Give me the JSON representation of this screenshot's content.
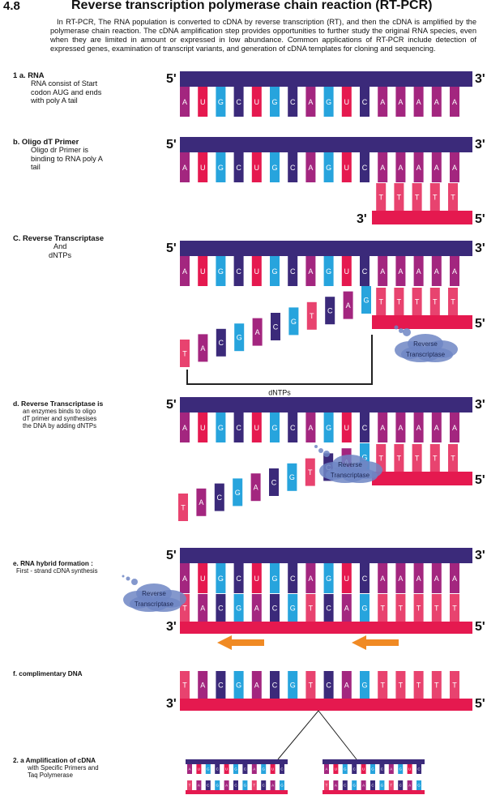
{
  "header": {
    "section_number": "4.8",
    "title": "Reverse transcription polymerase chain reaction (RT-PCR)",
    "intro": "In RT-PCR, The RNA population is converted to cDNA by reverse transcription (RT), and then the cDNA is amplified by the polymerase chain reaction. The cDNA amplification step provides opportunities to further study the original RNA species, even when they are limited in amount or expressed in low abundance. Common applications of RT-PCR include detection of expressed genes, examination of transcript variants, and generation of cDNA templates for cloning and sequencing."
  },
  "steps": [
    {
      "title": "1 a. RNA",
      "desc": "RNA consist of Start codon AUG and ends with poly A tail"
    },
    {
      "title": "b.  Oligo dT Primer",
      "desc": "Oligo dr Primer is binding to RNA poly A tail"
    },
    {
      "title": "C. Reverse Transcriptase",
      "desc_line1": "And",
      "desc_line2": "dNTPs"
    },
    {
      "title": "d.  Reverse Transcriptase is",
      "desc": "an enzymes binds to oligo dT primer and synthesises the DNA by adding dNTPs"
    },
    {
      "title": "e.  RNA hybrid formation :",
      "desc": "First - strand cDNA synthesis"
    },
    {
      "title": "f.      complimentary DNA"
    },
    {
      "title": "2. a  Amplification of cDNA",
      "desc": "with Specific Primers and Taq Polymerase"
    }
  ],
  "labels": {
    "five_prime": "5'",
    "three_prime": "3'",
    "dntps": "dNTPs",
    "enzyme_line1": "Reverse",
    "enzyme_line2": "Transcriptase"
  },
  "sequences": {
    "rna": [
      "A",
      "U",
      "G",
      "C",
      "U",
      "G",
      "C",
      "A",
      "G",
      "U",
      "C",
      "A",
      "A",
      "A",
      "A",
      "A"
    ],
    "primer": [
      "T",
      "T",
      "T",
      "T",
      "T",
      "T"
    ],
    "free_dntps": [
      "T",
      "A",
      "C",
      "G",
      "A",
      "C",
      "G",
      "T",
      "C",
      "A",
      "G"
    ],
    "cdna": [
      "T",
      "A",
      "C",
      "G",
      "A",
      "C",
      "G",
      "T",
      "C",
      "A",
      "G",
      "T",
      "T",
      "T",
      "T",
      "T"
    ],
    "mini_top": [
      "A",
      "U",
      "G",
      "C",
      "U",
      "G",
      "C",
      "A",
      "G",
      "U",
      "C"
    ],
    "mini_bottom": [
      "T",
      "A",
      "C",
      "G",
      "A",
      "C",
      "G",
      "T",
      "C",
      "A",
      "G"
    ]
  },
  "colors": {
    "backbone_rna": "#3b2a7a",
    "backbone_dna": "#e5194f",
    "A": "#a3267f",
    "U": "#e5194f",
    "G": "#27a4dd",
    "C": "#3b2a7a",
    "T": "#e8436f",
    "arrow": "#f08a24",
    "cloud": "#6e86c4"
  }
}
